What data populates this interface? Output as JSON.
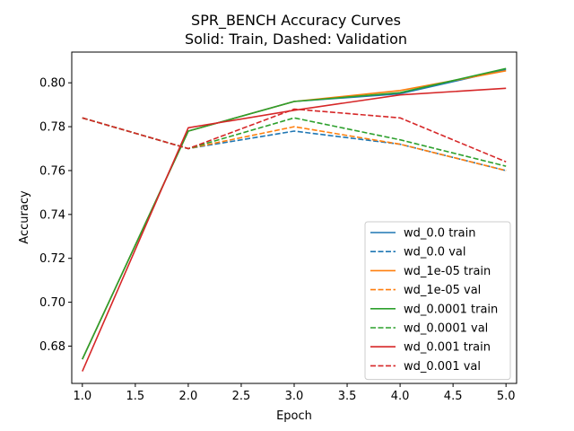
{
  "chart_data": {
    "type": "line",
    "title": "SPR_BENCH Accuracy Curves",
    "subtitle": "Solid: Train, Dashed: Validation",
    "xlabel": "Epoch",
    "ylabel": "Accuracy",
    "xlim": [
      0.9,
      5.1
    ],
    "ylim": [
      0.663,
      0.814
    ],
    "xticks": [
      1.0,
      1.5,
      2.0,
      2.5,
      3.0,
      3.5,
      4.0,
      4.5,
      5.0
    ],
    "xtick_labels": [
      "1.0",
      "1.5",
      "2.0",
      "2.5",
      "3.0",
      "3.5",
      "4.0",
      "4.5",
      "5.0"
    ],
    "yticks": [
      0.68,
      0.7,
      0.72,
      0.74,
      0.76,
      0.78,
      0.8
    ],
    "ytick_labels": [
      "0.68",
      "0.70",
      "0.72",
      "0.74",
      "0.76",
      "0.78",
      "0.80"
    ],
    "legend_position": "lower-right",
    "grid": false,
    "x": [
      1,
      2,
      3,
      4,
      5
    ],
    "series": [
      {
        "name": "wd_0.0 train",
        "color": "#1f77b4",
        "style": "solid",
        "values": [
          0.674,
          0.778,
          0.7915,
          0.795,
          0.806
        ]
      },
      {
        "name": "wd_0.0 val",
        "color": "#1f77b4",
        "style": "dashed",
        "values": [
          0.784,
          0.77,
          0.778,
          0.772,
          0.76
        ]
      },
      {
        "name": "wd_1e-05 train",
        "color": "#ff7f0e",
        "style": "solid",
        "values": [
          0.674,
          0.778,
          0.7915,
          0.7965,
          0.8055
        ]
      },
      {
        "name": "wd_1e-05 val",
        "color": "#ff7f0e",
        "style": "dashed",
        "values": [
          0.784,
          0.77,
          0.78,
          0.772,
          0.76
        ]
      },
      {
        "name": "wd_0.0001 train",
        "color": "#2ca02c",
        "style": "solid",
        "values": [
          0.674,
          0.778,
          0.7915,
          0.7955,
          0.8065
        ]
      },
      {
        "name": "wd_0.0001 val",
        "color": "#2ca02c",
        "style": "dashed",
        "values": [
          0.784,
          0.77,
          0.784,
          0.774,
          0.762
        ]
      },
      {
        "name": "wd_0.001 train",
        "color": "#d62728",
        "style": "solid",
        "values": [
          0.6685,
          0.7795,
          0.7875,
          0.7945,
          0.7975
        ]
      },
      {
        "name": "wd_0.001 val",
        "color": "#d62728",
        "style": "dashed",
        "values": [
          0.784,
          0.77,
          0.788,
          0.784,
          0.764
        ]
      }
    ]
  }
}
